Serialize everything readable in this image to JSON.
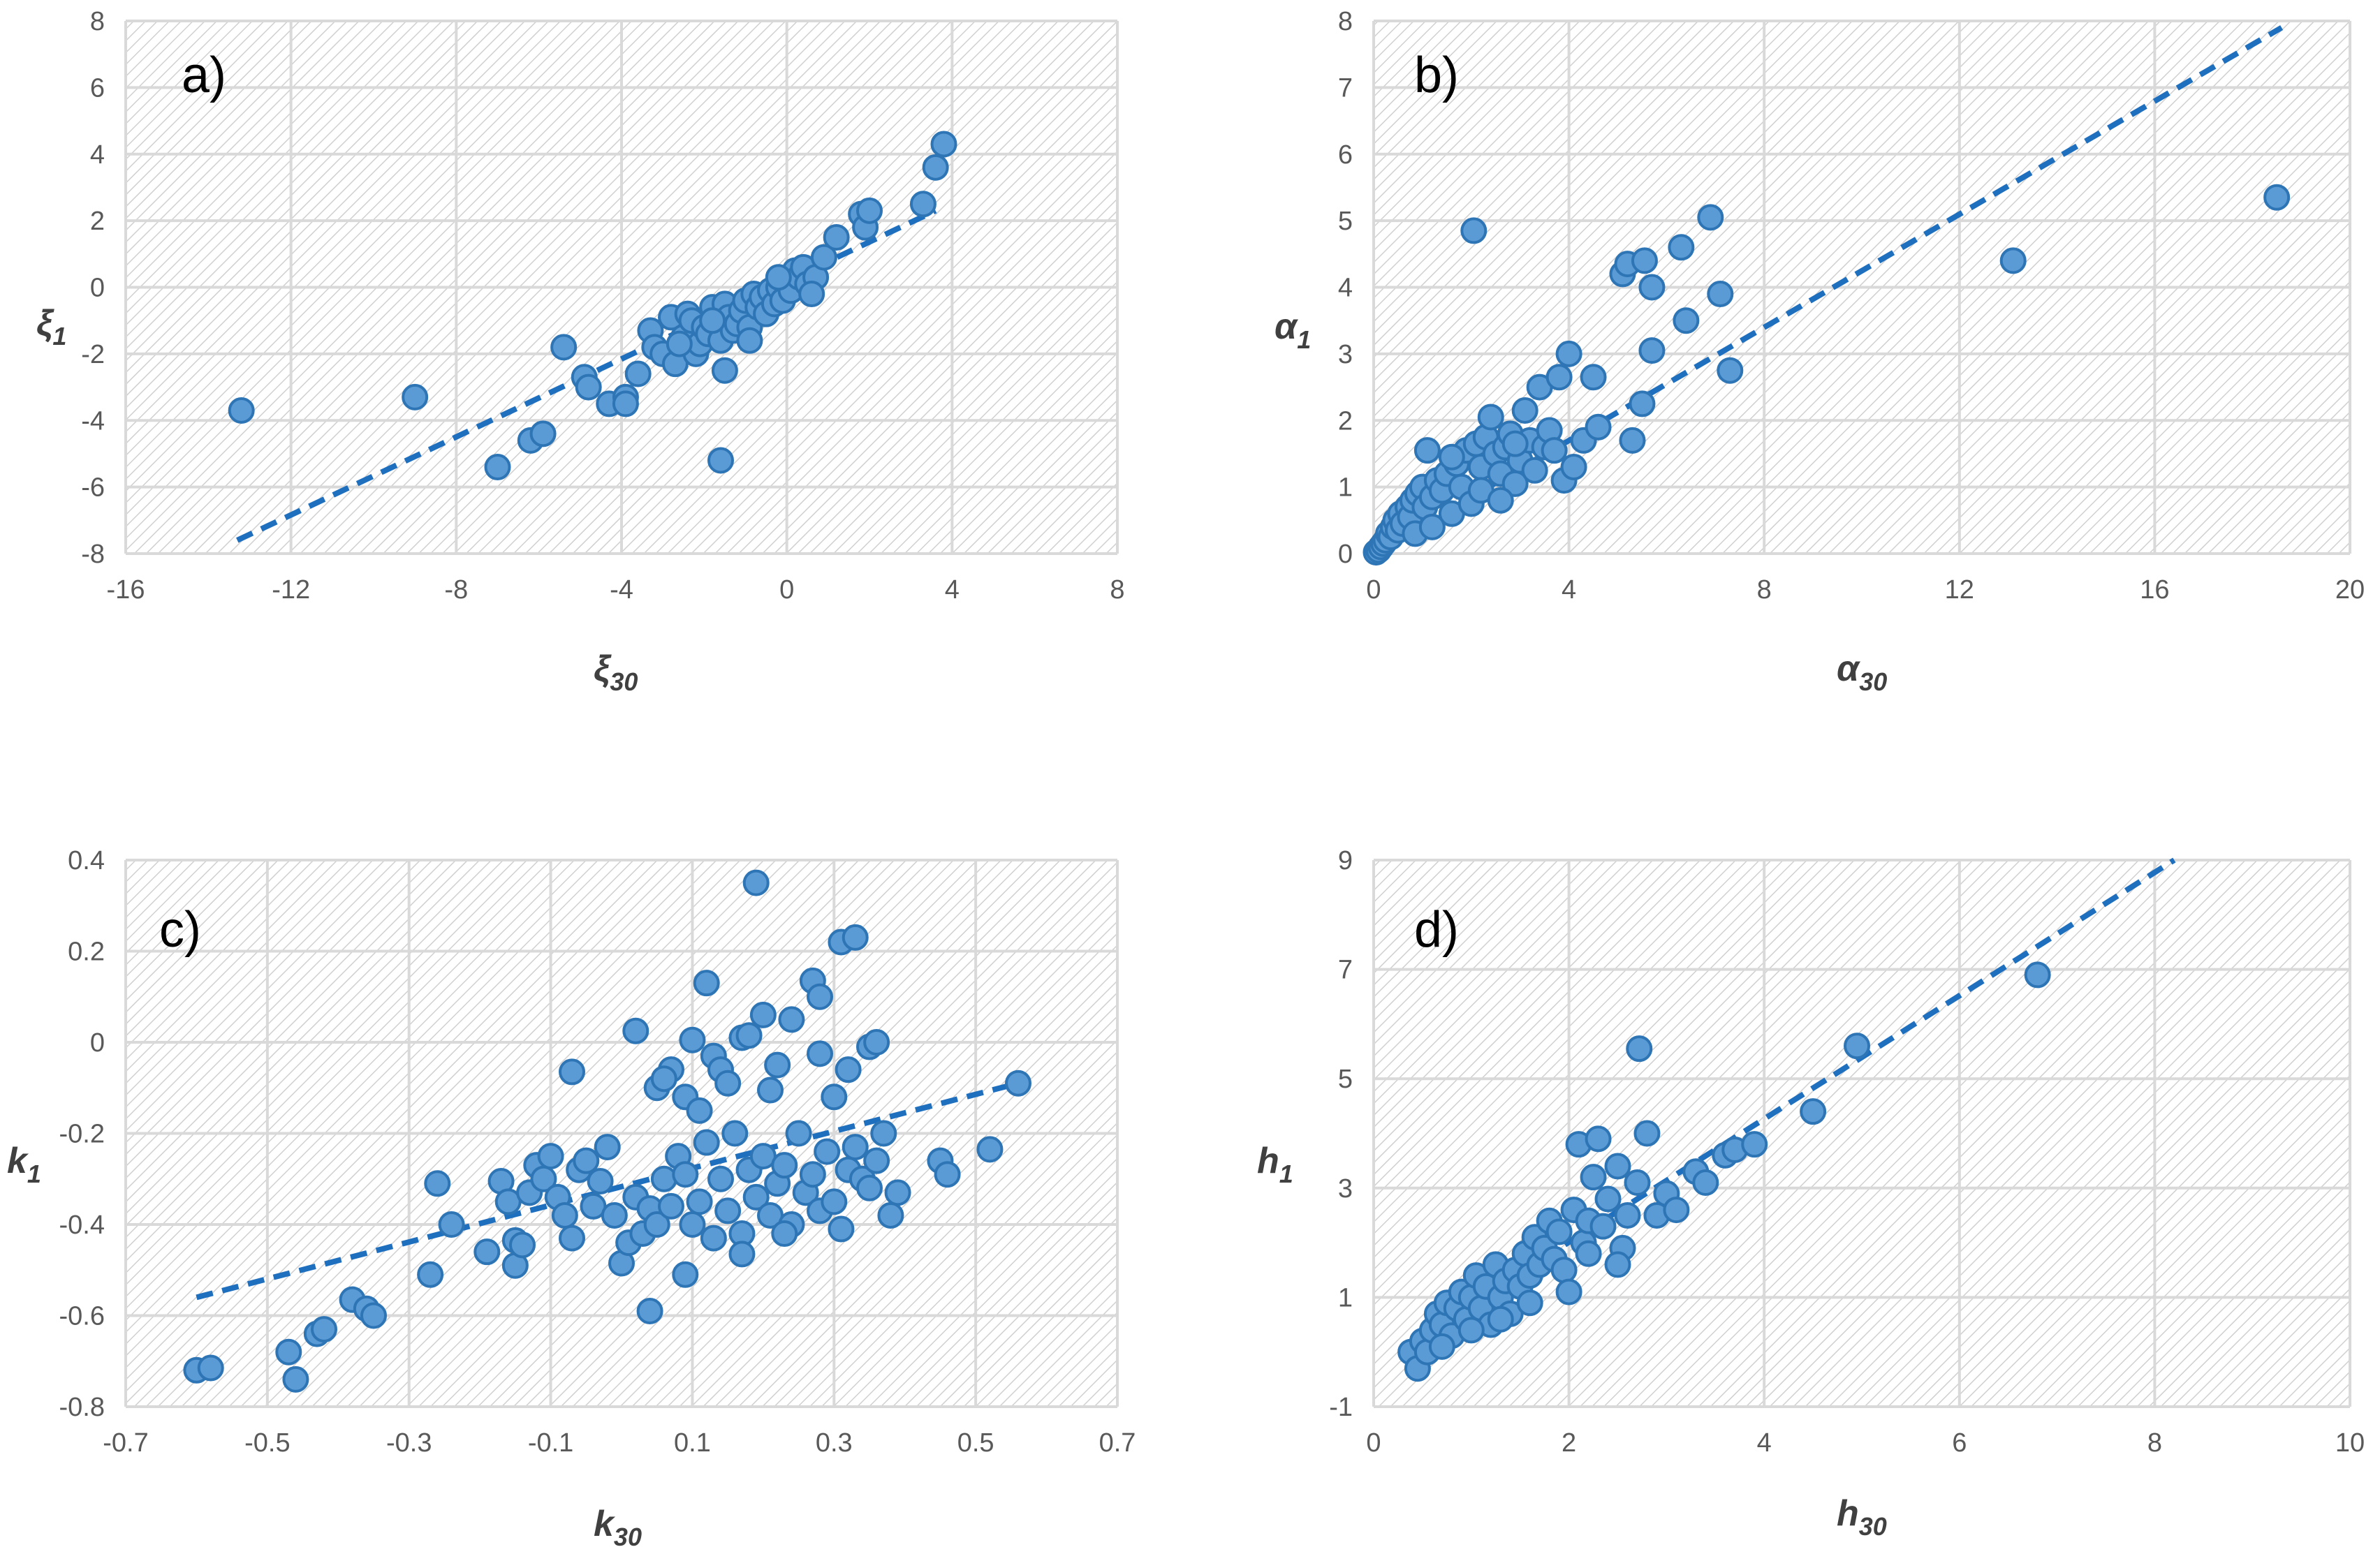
{
  "colors": {
    "marker_fill": "#5B9BD5",
    "marker_stroke": "#2E75B6",
    "trend": "#1F6FBF",
    "grid": "#D9D9D9",
    "hatch": "#D0D0D0"
  },
  "chart_data": [
    {
      "id": "a",
      "type": "scatter",
      "panel_label": "a)",
      "xlabel": {
        "main": "ξ",
        "sub": "30"
      },
      "ylabel": {
        "main": "ξ",
        "sub": "1"
      },
      "xlim": [
        -16,
        8
      ],
      "ylim": [
        -8,
        8
      ],
      "xticks": [
        -16,
        -12,
        -8,
        -4,
        0,
        4,
        8
      ],
      "xtick_labels": [
        "-16",
        "-12",
        "-8",
        "-4",
        "0",
        "4",
        "8"
      ],
      "yticks": [
        -8,
        -6,
        -4,
        -2,
        0,
        2,
        4,
        6,
        8
      ],
      "ytick_labels": [
        "-8",
        "-6",
        "-4",
        "-2",
        "0",
        "2",
        "4",
        "6",
        "8"
      ],
      "trendline": {
        "x": [
          -13.3,
          3.6
        ],
        "y": [
          -7.6,
          2.3
        ]
      },
      "points": [
        [
          -13.2,
          -3.7
        ],
        [
          -9,
          -3.3
        ],
        [
          -7,
          -5.4
        ],
        [
          -6.2,
          -4.6
        ],
        [
          -5.9,
          -4.4
        ],
        [
          -5.4,
          -1.8
        ],
        [
          -4.9,
          -2.7
        ],
        [
          -4.8,
          -3
        ],
        [
          -4.3,
          -3.5
        ],
        [
          -3.9,
          -3.3
        ],
        [
          -3.9,
          -3.5
        ],
        [
          -3.6,
          -2.6
        ],
        [
          -3.3,
          -1.3
        ],
        [
          -3.2,
          -1.8
        ],
        [
          -3,
          -2
        ],
        [
          -2.8,
          -0.9
        ],
        [
          -2.7,
          -2.3
        ],
        [
          -2.5,
          -1.5
        ],
        [
          -2.4,
          -0.8
        ],
        [
          -2.3,
          -1
        ],
        [
          -2.2,
          -2
        ],
        [
          -2.1,
          -1.7
        ],
        [
          -2,
          -1.2
        ],
        [
          -1.9,
          -1.4
        ],
        [
          -1.8,
          -0.6
        ],
        [
          -1.7,
          -1
        ],
        [
          -1.6,
          -1.6
        ],
        [
          -1.5,
          -0.5
        ],
        [
          -1.4,
          -0.9
        ],
        [
          -1.3,
          -1.3
        ],
        [
          -1.2,
          -1.1
        ],
        [
          -1.1,
          -0.7
        ],
        [
          -1,
          -0.4
        ],
        [
          -0.9,
          -1.2
        ],
        [
          -0.8,
          -0.2
        ],
        [
          -0.7,
          -0.6
        ],
        [
          -0.6,
          -0.3
        ],
        [
          -0.5,
          -0.8
        ],
        [
          -0.4,
          -0.1
        ],
        [
          -0.3,
          -0.5
        ],
        [
          -0.2,
          0
        ],
        [
          -0.1,
          -0.4
        ],
        [
          0,
          0.2
        ],
        [
          0.1,
          -0.1
        ],
        [
          0.2,
          0.5
        ],
        [
          0.3,
          0.3
        ],
        [
          0.4,
          0.6
        ],
        [
          0.5,
          0.1
        ],
        [
          0.7,
          0.3
        ],
        [
          0.9,
          0.9
        ],
        [
          1.2,
          1.5
        ],
        [
          1.8,
          2.2
        ],
        [
          1.9,
          1.8
        ],
        [
          2,
          2.3
        ],
        [
          3.3,
          2.5
        ],
        [
          3.6,
          3.6
        ],
        [
          3.8,
          4.3
        ],
        [
          -1.5,
          -2.5
        ],
        [
          -1.6,
          -5.2
        ],
        [
          -0.9,
          -1.6
        ],
        [
          -2.6,
          -1.7
        ],
        [
          -1.8,
          -1
        ],
        [
          0.6,
          -0.2
        ],
        [
          -0.2,
          0.3
        ]
      ]
    },
    {
      "id": "b",
      "type": "scatter",
      "panel_label": "b)",
      "xlabel": {
        "main": "α",
        "sub": "30"
      },
      "ylabel": {
        "main": "α",
        "sub": "1"
      },
      "xlim": [
        0,
        20
      ],
      "ylim": [
        0,
        8
      ],
      "xticks": [
        0,
        4,
        8,
        12,
        16,
        20
      ],
      "xtick_labels": [
        "0",
        "4",
        "8",
        "12",
        "16",
        "20"
      ],
      "yticks": [
        0,
        1,
        2,
        3,
        4,
        5,
        6,
        7,
        8
      ],
      "ytick_labels": [
        "0",
        "1",
        "2",
        "3",
        "4",
        "5",
        "6",
        "7",
        "8"
      ],
      "trendline": {
        "x": [
          0,
          18.6
        ],
        "y": [
          0,
          7.9
        ]
      },
      "points": [
        [
          0.05,
          0.02
        ],
        [
          0.1,
          0.05
        ],
        [
          0.15,
          0.1
        ],
        [
          0.2,
          0.15
        ],
        [
          0.25,
          0.2
        ],
        [
          0.3,
          0.3
        ],
        [
          0.35,
          0.25
        ],
        [
          0.4,
          0.4
        ],
        [
          0.45,
          0.5
        ],
        [
          0.5,
          0.35
        ],
        [
          0.55,
          0.6
        ],
        [
          0.6,
          0.45
        ],
        [
          0.7,
          0.7
        ],
        [
          0.75,
          0.55
        ],
        [
          0.8,
          0.8
        ],
        [
          0.85,
          0.3
        ],
        [
          0.9,
          0.9
        ],
        [
          1,
          1
        ],
        [
          1.05,
          0.7
        ],
        [
          1.1,
          1.55
        ],
        [
          1.2,
          0.85
        ],
        [
          1.3,
          1.1
        ],
        [
          1.4,
          0.95
        ],
        [
          1.5,
          1.2
        ],
        [
          1.6,
          0.6
        ],
        [
          1.7,
          1.35
        ],
        [
          1.8,
          1
        ],
        [
          1.9,
          1.55
        ],
        [
          2,
          0.75
        ],
        [
          2.05,
          4.85
        ],
        [
          2.1,
          1.65
        ],
        [
          2.2,
          1.3
        ],
        [
          2.3,
          1.75
        ],
        [
          2.4,
          2.05
        ],
        [
          2.5,
          1.5
        ],
        [
          2.6,
          1.2
        ],
        [
          2.7,
          1.6
        ],
        [
          2.8,
          1.8
        ],
        [
          2.9,
          1.05
        ],
        [
          3,
          1.4
        ],
        [
          3.1,
          2.15
        ],
        [
          3.2,
          1.7
        ],
        [
          3.3,
          1.25
        ],
        [
          3.4,
          2.5
        ],
        [
          3.5,
          1.6
        ],
        [
          3.6,
          1.85
        ],
        [
          3.7,
          1.55
        ],
        [
          3.8,
          2.65
        ],
        [
          3.9,
          1.1
        ],
        [
          4,
          3
        ],
        [
          4.1,
          1.3
        ],
        [
          4.3,
          1.7
        ],
        [
          4.5,
          2.65
        ],
        [
          4.6,
          1.9
        ],
        [
          5.1,
          4.2
        ],
        [
          5.2,
          4.35
        ],
        [
          5.3,
          1.7
        ],
        [
          5.5,
          2.25
        ],
        [
          5.55,
          4.4
        ],
        [
          5.7,
          4
        ],
        [
          5.7,
          3.05
        ],
        [
          6.3,
          4.6
        ],
        [
          6.4,
          3.5
        ],
        [
          6.9,
          5.05
        ],
        [
          7.1,
          3.9
        ],
        [
          7.3,
          2.75
        ],
        [
          13.1,
          4.4
        ],
        [
          18.5,
          5.35
        ],
        [
          1.2,
          0.4
        ],
        [
          1.6,
          1.45
        ],
        [
          2.2,
          0.95
        ],
        [
          2.6,
          0.8
        ],
        [
          2.9,
          1.65
        ]
      ]
    },
    {
      "id": "c",
      "type": "scatter",
      "panel_label": "c)",
      "xlabel": {
        "main": "k",
        "sub": "30"
      },
      "ylabel": {
        "main": "k",
        "sub": "1"
      },
      "xlim": [
        -0.7,
        0.7
      ],
      "ylim": [
        -0.8,
        0.4
      ],
      "xticks": [
        -0.7,
        -0.5,
        -0.3,
        -0.1,
        0.1,
        0.3,
        0.5,
        0.7
      ],
      "xtick_labels": [
        "-0.7",
        "-0.5",
        "-0.3",
        "-0.1",
        "0.1",
        "0.3",
        "0.5",
        "0.7"
      ],
      "yticks": [
        -0.8,
        -0.6,
        -0.4,
        -0.2,
        0,
        0.2,
        0.4
      ],
      "ytick_labels": [
        "-0.8",
        "-0.6",
        "-0.4",
        "-0.2",
        "0",
        "0.2",
        "0.4"
      ],
      "trendline": {
        "x": [
          -0.6,
          0.56
        ],
        "y": [
          -0.56,
          -0.09
        ]
      },
      "points": [
        [
          -0.6,
          -0.72
        ],
        [
          -0.58,
          -0.715
        ],
        [
          -0.47,
          -0.68
        ],
        [
          -0.46,
          -0.74
        ],
        [
          -0.43,
          -0.64
        ],
        [
          -0.42,
          -0.63
        ],
        [
          -0.38,
          -0.565
        ],
        [
          -0.36,
          -0.585
        ],
        [
          -0.35,
          -0.6
        ],
        [
          -0.27,
          -0.51
        ],
        [
          -0.26,
          -0.31
        ],
        [
          -0.24,
          -0.4
        ],
        [
          -0.19,
          -0.46
        ],
        [
          -0.17,
          -0.305
        ],
        [
          -0.16,
          -0.35
        ],
        [
          -0.15,
          -0.435
        ],
        [
          -0.15,
          -0.49
        ],
        [
          -0.14,
          -0.445
        ],
        [
          -0.13,
          -0.33
        ],
        [
          -0.12,
          -0.27
        ],
        [
          -0.11,
          -0.3
        ],
        [
          -0.1,
          -0.25
        ],
        [
          -0.09,
          -0.34
        ],
        [
          -0.08,
          -0.38
        ],
        [
          -0.07,
          -0.43
        ],
        [
          -0.07,
          -0.065
        ],
        [
          -0.06,
          -0.28
        ],
        [
          -0.05,
          -0.26
        ],
        [
          -0.04,
          -0.36
        ],
        [
          -0.03,
          -0.305
        ],
        [
          -0.02,
          -0.23
        ],
        [
          -0.01,
          -0.38
        ],
        [
          0,
          -0.485
        ],
        [
          0.01,
          -0.44
        ],
        [
          0.02,
          -0.34
        ],
        [
          0.03,
          -0.42
        ],
        [
          0.04,
          -0.365
        ],
        [
          0.05,
          -0.4
        ],
        [
          0.06,
          -0.3
        ],
        [
          0.07,
          -0.36
        ],
        [
          0.08,
          -0.25
        ],
        [
          0.09,
          -0.29
        ],
        [
          0.1,
          -0.4
        ],
        [
          0.11,
          -0.35
        ],
        [
          0.12,
          -0.22
        ],
        [
          0.13,
          -0.43
        ],
        [
          0.14,
          -0.3
        ],
        [
          0.15,
          -0.37
        ],
        [
          0.16,
          -0.2
        ],
        [
          0.17,
          -0.42
        ],
        [
          0.18,
          -0.28
        ],
        [
          0.19,
          -0.34
        ],
        [
          0.2,
          -0.25
        ],
        [
          0.21,
          -0.38
        ],
        [
          0.22,
          -0.31
        ],
        [
          0.23,
          -0.27
        ],
        [
          0.24,
          -0.4
        ],
        [
          0.25,
          -0.2
        ],
        [
          0.26,
          -0.33
        ],
        [
          0.27,
          -0.29
        ],
        [
          0.28,
          -0.37
        ],
        [
          0.29,
          -0.24
        ],
        [
          0.3,
          -0.35
        ],
        [
          0.31,
          -0.41
        ],
        [
          0.32,
          -0.28
        ],
        [
          0.33,
          -0.23
        ],
        [
          0.34,
          -0.3
        ],
        [
          0.35,
          -0.32
        ],
        [
          0.36,
          -0.26
        ],
        [
          0.37,
          -0.2
        ],
        [
          0.38,
          -0.38
        ],
        [
          0.39,
          -0.33
        ],
        [
          0.05,
          -0.1
        ],
        [
          0.07,
          -0.06
        ],
        [
          0.09,
          -0.12
        ],
        [
          0.1,
          0.005
        ],
        [
          0.12,
          0.13
        ],
        [
          0.13,
          -0.03
        ],
        [
          0.14,
          -0.06
        ],
        [
          0.15,
          -0.09
        ],
        [
          0.17,
          0.01
        ],
        [
          0.18,
          0.015
        ],
        [
          0.19,
          0.35
        ],
        [
          0.2,
          0.06
        ],
        [
          0.22,
          -0.05
        ],
        [
          0.24,
          0.05
        ],
        [
          0.27,
          0.135
        ],
        [
          0.28,
          0.1
        ],
        [
          0.28,
          -0.025
        ],
        [
          0.3,
          -0.12
        ],
        [
          0.31,
          0.22
        ],
        [
          0.32,
          -0.06
        ],
        [
          0.33,
          0.23
        ],
        [
          0.35,
          -0.01
        ],
        [
          0.36,
          0
        ],
        [
          0.45,
          -0.26
        ],
        [
          0.46,
          -0.29
        ],
        [
          0.52,
          -0.235
        ],
        [
          0.56,
          -0.09
        ],
        [
          0.04,
          -0.59
        ],
        [
          0.09,
          -0.51
        ],
        [
          0.17,
          -0.465
        ],
        [
          0.23,
          -0.42
        ],
        [
          0.02,
          0.025
        ],
        [
          0.06,
          -0.08
        ],
        [
          0.11,
          -0.15
        ],
        [
          0.21,
          -0.105
        ]
      ]
    },
    {
      "id": "d",
      "type": "scatter",
      "panel_label": "d)",
      "xlabel": {
        "main": "h",
        "sub": "30"
      },
      "ylabel": {
        "main": "h",
        "sub": "1"
      },
      "xlim": [
        0,
        10
      ],
      "ylim": [
        -1,
        9
      ],
      "xticks": [
        0,
        2,
        4,
        6,
        8,
        10
      ],
      "xtick_labels": [
        "0",
        "2",
        "4",
        "6",
        "8",
        "10"
      ],
      "yticks": [
        -1,
        1,
        3,
        5,
        7,
        9
      ],
      "ytick_labels": [
        "-1",
        "1",
        "3",
        "5",
        "7",
        "9"
      ],
      "trendline": {
        "x": [
          0.35,
          8.2
        ],
        "y": [
          0.15,
          9
        ]
      },
      "points": [
        [
          0.38,
          0
        ],
        [
          0.45,
          -0.3
        ],
        [
          0.5,
          0.2
        ],
        [
          0.55,
          0
        ],
        [
          0.6,
          0.4
        ],
        [
          0.65,
          0.7
        ],
        [
          0.7,
          0.5
        ],
        [
          0.75,
          0.9
        ],
        [
          0.8,
          0.3
        ],
        [
          0.85,
          0.8
        ],
        [
          0.9,
          1.1
        ],
        [
          0.95,
          0.6
        ],
        [
          1,
          1
        ],
        [
          1.05,
          1.4
        ],
        [
          1.1,
          0.8
        ],
        [
          1.15,
          1.2
        ],
        [
          1.2,
          0.5
        ],
        [
          1.25,
          1.6
        ],
        [
          1.3,
          1
        ],
        [
          1.35,
          1.3
        ],
        [
          1.4,
          0.7
        ],
        [
          1.45,
          1.5
        ],
        [
          1.5,
          1.2
        ],
        [
          1.55,
          1.8
        ],
        [
          1.6,
          1.4
        ],
        [
          1.65,
          2.1
        ],
        [
          1.7,
          1.6
        ],
        [
          1.75,
          1.9
        ],
        [
          1.8,
          2.4
        ],
        [
          1.85,
          1.7
        ],
        [
          1.9,
          2.2
        ],
        [
          1.95,
          1.5
        ],
        [
          2,
          1.1
        ],
        [
          2.05,
          2.6
        ],
        [
          2.1,
          3.8
        ],
        [
          2.15,
          2
        ],
        [
          2.2,
          2.4
        ],
        [
          2.25,
          3.2
        ],
        [
          2.3,
          3.9
        ],
        [
          2.35,
          2.3
        ],
        [
          2.4,
          2.8
        ],
        [
          2.5,
          3.4
        ],
        [
          2.55,
          1.9
        ],
        [
          2.6,
          2.5
        ],
        [
          2.7,
          3.1
        ],
        [
          2.72,
          5.55
        ],
        [
          2.8,
          4
        ],
        [
          2.9,
          2.5
        ],
        [
          3,
          2.9
        ],
        [
          3.1,
          2.6
        ],
        [
          3.3,
          3.3
        ],
        [
          3.4,
          3.1
        ],
        [
          3.6,
          3.6
        ],
        [
          3.7,
          3.7
        ],
        [
          3.9,
          3.8
        ],
        [
          4.5,
          4.4
        ],
        [
          4.95,
          5.6
        ],
        [
          6.8,
          6.9
        ],
        [
          0.7,
          0.1
        ],
        [
          1.0,
          0.4
        ],
        [
          1.3,
          0.6
        ],
        [
          1.6,
          0.9
        ],
        [
          2.2,
          1.8
        ],
        [
          2.5,
          1.6
        ]
      ]
    }
  ]
}
